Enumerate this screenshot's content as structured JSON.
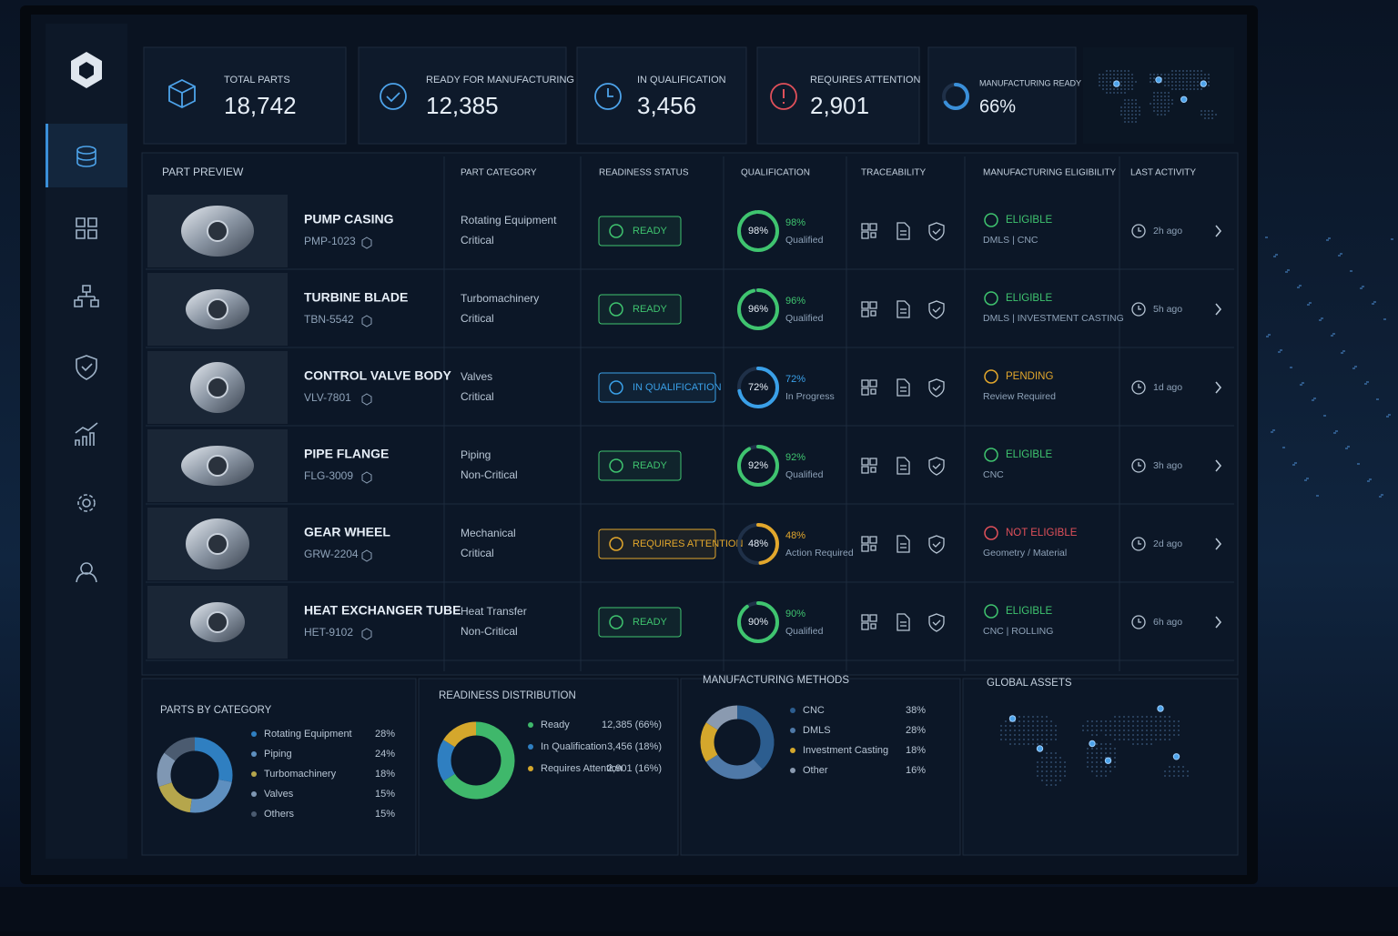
{
  "kpis": [
    {
      "label": "TOTAL PARTS",
      "value": "18,742"
    },
    {
      "label": "READY FOR MANUFACTURING",
      "value": "12,385"
    },
    {
      "label": "IN QUALIFICATION",
      "value": "3,456"
    },
    {
      "label": "REQUIRES ATTENTION",
      "value": "2,901"
    }
  ],
  "manufacturing_ready": {
    "label": "MANUFACTURING READY",
    "value": 66,
    "value_label": "66%",
    "color": "#3a8fd9"
  },
  "table": {
    "headers": [
      "PART PREVIEW",
      "PART CATEGORY",
      "READINESS STATUS",
      "QUALIFICATION",
      "TRACEABILITY",
      "MANUFACTURING ELIGIBILITY",
      "LAST ACTIVITY"
    ],
    "rows": [
      {
        "name": "PUMP CASING",
        "code": "PMP-1023",
        "category": "Rotating Equipment",
        "criticality": "Critical",
        "status": "READY",
        "status_color": "#3fc46f",
        "qualification": {
          "value": 98,
          "label": "98%"
        },
        "qualification_note": "Qualified",
        "eligibility": "ELIGIBLE",
        "eligibility_color": "#3fc46f",
        "eligibility_detail": "DMLS | CNC",
        "last_activity": "2h ago"
      },
      {
        "name": "TURBINE BLADE",
        "code": "TBN-5542",
        "category": "Turbomachinery",
        "criticality": "Critical",
        "status": "READY",
        "status_color": "#3fc46f",
        "qualification": {
          "value": 96,
          "label": "96%"
        },
        "qualification_note": "Qualified",
        "eligibility": "ELIGIBLE",
        "eligibility_color": "#3fc46f",
        "eligibility_detail": "DMLS | INVESTMENT CASTING",
        "last_activity": "5h ago"
      },
      {
        "name": "CONTROL VALVE BODY",
        "code": "VLV-7801",
        "category": "Valves",
        "criticality": "Critical",
        "status": "IN QUALIFICATION",
        "status_color": "#3aa0e8",
        "qualification": {
          "value": 72,
          "label": "72%"
        },
        "qualification_note": "In Progress",
        "eligibility": "PENDING",
        "eligibility_color": "#e2a72c",
        "eligibility_detail": "Review Required",
        "last_activity": "1d ago"
      },
      {
        "name": "PIPE FLANGE",
        "code": "FLG-3009",
        "category": "Piping",
        "criticality": "Non-Critical",
        "status": "READY",
        "status_color": "#3fc46f",
        "qualification": {
          "value": 92,
          "label": "92%"
        },
        "qualification_note": "Qualified",
        "eligibility": "ELIGIBLE",
        "eligibility_color": "#3fc46f",
        "eligibility_detail": "CNC",
        "last_activity": "3h ago"
      },
      {
        "name": "GEAR WHEEL",
        "code": "GRW-2204",
        "category": "Mechanical",
        "criticality": "Critical",
        "status": "REQUIRES ATTENTION",
        "status_color": "#e2a72c",
        "qualification": {
          "value": 48,
          "label": "48%"
        },
        "qualification_note": "Action Required",
        "eligibility": "NOT ELIGIBLE",
        "eligibility_color": "#e0505a",
        "eligibility_detail": "Geometry / Material",
        "last_activity": "2d ago"
      },
      {
        "name": "HEAT EXCHANGER TUBE",
        "code": "HET-9102",
        "category": "Heat Transfer",
        "criticality": "Non-Critical",
        "status": "READY",
        "status_color": "#3fc46f",
        "qualification": {
          "value": 90,
          "label": "90%"
        },
        "qualification_note": "Qualified",
        "eligibility": "ELIGIBLE",
        "eligibility_color": "#3fc46f",
        "eligibility_detail": "CNC | ROLLING",
        "last_activity": "6h ago"
      }
    ]
  },
  "panels": {
    "parts_by_category": {
      "title": "PARTS BY CATEGORY",
      "items": [
        {
          "name": "Rotating Equipment",
          "value": 28,
          "label": "28%",
          "color": "#2f7fc1"
        },
        {
          "name": "Piping",
          "value": 24,
          "label": "24%",
          "color": "#5e8fbf"
        },
        {
          "name": "Turbomachinery",
          "value": 18,
          "label": "18%",
          "color": "#b5a64c"
        },
        {
          "name": "Valves",
          "value": 15,
          "label": "15%",
          "color": "#7f97b3"
        },
        {
          "name": "Others",
          "value": 15,
          "label": "15%",
          "color": "#4b5b70"
        }
      ]
    },
    "readiness_distribution": {
      "title": "READINESS DISTRIBUTION",
      "items": [
        {
          "name": "Ready",
          "value": 66,
          "label": "12,385 (66%)",
          "color": "#3fb86b"
        },
        {
          "name": "In Qualification",
          "value": 18,
          "label": "3,456 (18%)",
          "color": "#2f7fc1"
        },
        {
          "name": "Requires Attention",
          "value": 16,
          "label": "2,901 (16%)",
          "color": "#d4a72c"
        }
      ]
    },
    "manufacturing_methods": {
      "title": "MANUFACTURING METHODS",
      "items": [
        {
          "name": "CNC",
          "value": 38,
          "label": "38%",
          "color": "#2c5d8f"
        },
        {
          "name": "DMLS",
          "value": 28,
          "label": "28%",
          "color": "#4f79a8"
        },
        {
          "name": "Investment Casting",
          "value": 18,
          "label": "18%",
          "color": "#d4a72c"
        },
        {
          "name": "Other",
          "value": 16,
          "label": "16%",
          "color": "#8a9ab0"
        }
      ]
    },
    "global_assets": {
      "title": "GLOBAL ASSETS"
    }
  }
}
